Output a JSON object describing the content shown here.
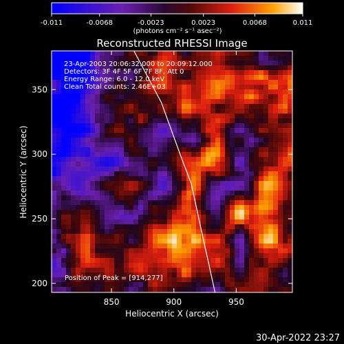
{
  "colorbar": {
    "ticks": [
      "-0.011",
      "-0.0068",
      "-0.0023",
      "0.0023",
      "0.0068",
      "0.011"
    ],
    "tick_values": [
      -0.011,
      -0.0068,
      -0.0023,
      0.0023,
      0.0068,
      0.011
    ],
    "range": [
      -0.011,
      0.011
    ],
    "unit_label": "(photons cm⁻² s⁻¹ asec⁻²)"
  },
  "plot": {
    "title": "Reconstructed RHESSI Image",
    "info_lines": [
      "23-Apr-2003 20:06:32.000 to 20:09:12.000",
      "Detectors: 3F 4F 5F 6F 7F 8F, Att 0",
      "Energy Range: 6.0 - 12.0 keV",
      "Clean     Total counts: 2.46E+03"
    ],
    "peak_text": "Position of Peak = [914,277]"
  },
  "footer": {
    "timestamp": "30-Apr-2022 23:27"
  },
  "chart_data": {
    "type": "heatmap",
    "title": "Reconstructed RHESSI Image",
    "xlabel": "Heliocentric X (arcsec)",
    "ylabel": "Heliocentric Y (arcsec)",
    "xlim": [
      802,
      995
    ],
    "ylim": [
      193,
      380
    ],
    "x_ticks": [
      850,
      900,
      950
    ],
    "y_ticks": [
      200,
      250,
      300,
      350
    ],
    "peak": {
      "x": 914,
      "y": 277
    },
    "limb_line": [
      [
        868,
        380
      ],
      [
        890,
        340
      ],
      [
        905,
        300
      ],
      [
        914,
        277
      ],
      [
        920,
        250
      ],
      [
        928,
        215
      ],
      [
        933,
        193
      ]
    ],
    "colormap": [
      "#0000ff",
      "#5a1a9a",
      "#000000",
      "#d01010",
      "#ffff80",
      "#ffffff"
    ]
  }
}
